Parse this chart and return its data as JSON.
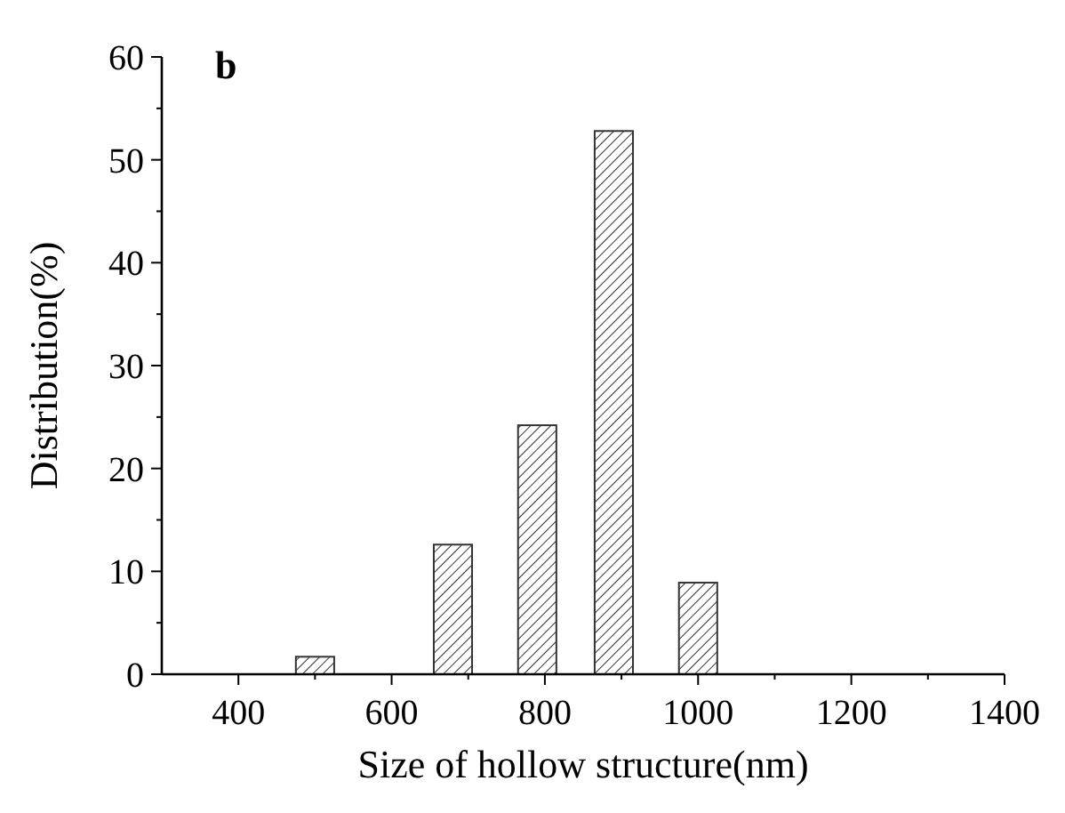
{
  "chart_data": {
    "type": "bar",
    "title": "b",
    "xlabel": "Size of hollow structure(nm)",
    "ylabel": "Distribution(%)",
    "x": [
      500,
      680,
      790,
      890,
      1000
    ],
    "values": [
      1.7,
      12.6,
      24.2,
      52.8,
      8.9
    ],
    "color": "#333333",
    "xlim": [
      300,
      1400
    ],
    "xticks": [
      400,
      600,
      800,
      1000,
      1200,
      1400
    ],
    "ylim": [
      0,
      60
    ],
    "yticks": [
      0,
      10,
      20,
      30,
      40,
      50,
      60
    ],
    "grid": false
  }
}
